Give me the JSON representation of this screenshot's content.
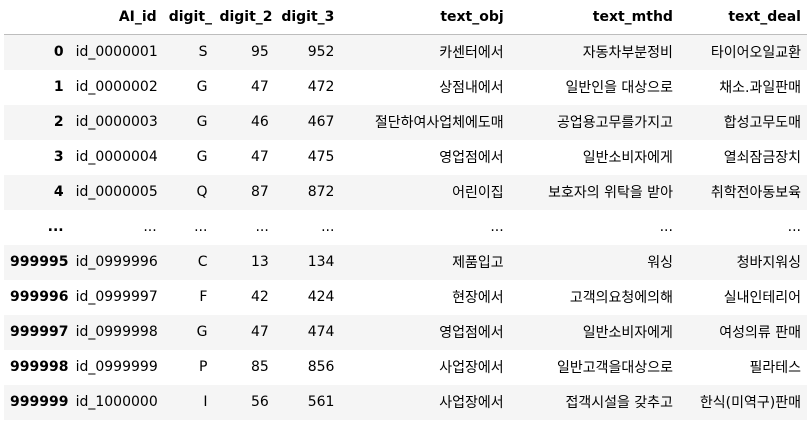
{
  "columns": [
    "AI_id",
    "digit_1",
    "digit_2",
    "digit_3",
    "text_obj",
    "text_mthd",
    "text_deal"
  ],
  "rows": [
    {
      "index": "0",
      "AI_id": "id_0000001",
      "digit_1": "S",
      "digit_2": "95",
      "digit_3": "952",
      "text_obj": "카센터에서",
      "text_mthd": "자동차부분정비",
      "text_deal": "타이어오일교환"
    },
    {
      "index": "1",
      "AI_id": "id_0000002",
      "digit_1": "G",
      "digit_2": "47",
      "digit_3": "472",
      "text_obj": "상점내에서",
      "text_mthd": "일반인을 대상으로",
      "text_deal": "채소.과일판매"
    },
    {
      "index": "2",
      "AI_id": "id_0000003",
      "digit_1": "G",
      "digit_2": "46",
      "digit_3": "467",
      "text_obj": "절단하여사업체에도매",
      "text_mthd": "공업용고무를가지고",
      "text_deal": "합성고무도매"
    },
    {
      "index": "3",
      "AI_id": "id_0000004",
      "digit_1": "G",
      "digit_2": "47",
      "digit_3": "475",
      "text_obj": "영업점에서",
      "text_mthd": "일반소비자에게",
      "text_deal": "열쇠잠금장치"
    },
    {
      "index": "4",
      "AI_id": "id_0000005",
      "digit_1": "Q",
      "digit_2": "87",
      "digit_3": "872",
      "text_obj": "어린이집",
      "text_mthd": "보호자의 위탁을 받아",
      "text_deal": "취학전아동보육"
    },
    {
      "index": "...",
      "AI_id": "...",
      "digit_1": "...",
      "digit_2": "...",
      "digit_3": "...",
      "text_obj": "...",
      "text_mthd": "...",
      "text_deal": "..."
    },
    {
      "index": "999995",
      "AI_id": "id_0999996",
      "digit_1": "C",
      "digit_2": "13",
      "digit_3": "134",
      "text_obj": "제품입고",
      "text_mthd": "워싱",
      "text_deal": "청바지워싱"
    },
    {
      "index": "999996",
      "AI_id": "id_0999997",
      "digit_1": "F",
      "digit_2": "42",
      "digit_3": "424",
      "text_obj": "현장에서",
      "text_mthd": "고객의요청에의해",
      "text_deal": "실내인테리어"
    },
    {
      "index": "999997",
      "AI_id": "id_0999998",
      "digit_1": "G",
      "digit_2": "47",
      "digit_3": "474",
      "text_obj": "영업점에서",
      "text_mthd": "일반소비자에게",
      "text_deal": "여성의류 판매"
    },
    {
      "index": "999998",
      "AI_id": "id_0999999",
      "digit_1": "P",
      "digit_2": "85",
      "digit_3": "856",
      "text_obj": "사업장에서",
      "text_mthd": "일반고객을대상으로",
      "text_deal": "필라테스"
    },
    {
      "index": "999999",
      "AI_id": "id_1000000",
      "digit_1": "I",
      "digit_2": "56",
      "digit_3": "561",
      "text_obj": "사업장에서",
      "text_mthd": "접객시설을 갖추고",
      "text_deal": "한식(미역구)판매"
    }
  ]
}
